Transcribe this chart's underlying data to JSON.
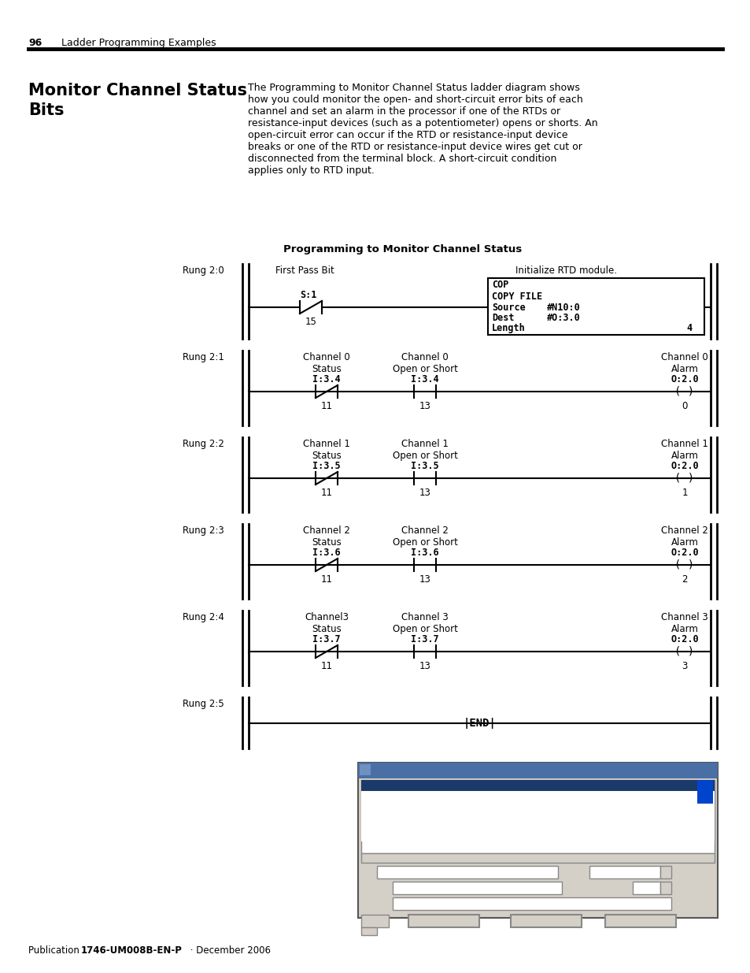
{
  "page_number": "96",
  "page_header": "Ladder Programming Examples",
  "title_line1": "Monitor Channel Status",
  "title_line2": "Bits",
  "body_text": "The Programming to Monitor Channel Status ladder diagram shows\nhow you could monitor the open- and short-circuit error bits of each\nchannel and set an alarm in the processor if one of the RTDs or\nresistance-input devices (such as a potentiometer) opens or shorts. An\nopen-circuit error can occur if the RTD or resistance-input device\nbreaks or one of the RTD or resistance-input device wires get cut or\ndisconnected from the terminal block. A short-circuit condition\napplies only to RTD input.",
  "diagram_title": "Programming to Monitor Channel Status",
  "footer_plain": "Publication ",
  "footer_bold": "1746-UM008B-EN-P",
  "footer_plain2": " · December 2006",
  "bg_color": "#ffffff"
}
